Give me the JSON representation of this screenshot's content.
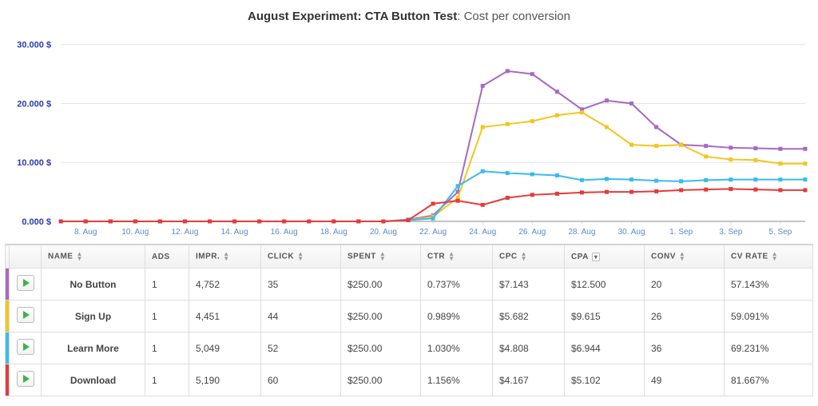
{
  "chart": {
    "title_bold": "August Experiment: CTA Button Test",
    "title_light": ": Cost per conversion",
    "title_fontsize": 15,
    "type": "line",
    "ylabel_suffix": " $",
    "ylim": [
      0,
      32
    ],
    "yticks": [
      0,
      10,
      20,
      30
    ],
    "ytick_labels": [
      "0.000 $",
      "10.000 $",
      "20.000 $",
      "30.000 $"
    ],
    "x_labels": [
      "8. Aug",
      "10. Aug",
      "12. Aug",
      "14. Aug",
      "16. Aug",
      "18. Aug",
      "20. Aug",
      "22. Aug",
      "24. Aug",
      "26. Aug",
      "28. Aug",
      "30. Aug",
      "1. Sep",
      "3. Sep",
      "5. Sep"
    ],
    "x_count": 31,
    "background_color": "#ffffff",
    "grid_color": "#e3e3e3",
    "axis_color": "#888888",
    "ytick_color": "#2a3ab0",
    "xtick_color": "#5a8acb",
    "line_width": 2,
    "marker": "square",
    "marker_size": 3,
    "series": [
      {
        "name": "No Button",
        "color": "#a769c3",
        "y": [
          0,
          0,
          0,
          0,
          0,
          0,
          0,
          0,
          0,
          0,
          0,
          0,
          0,
          0,
          0.3,
          1,
          5,
          23,
          25.5,
          25,
          22,
          19,
          20.5,
          20,
          16,
          13,
          12.8,
          12.5,
          12.4,
          12.3,
          12.3
        ]
      },
      {
        "name": "Sign Up",
        "color": "#f2c61f",
        "y": [
          0,
          0,
          0,
          0,
          0,
          0,
          0,
          0,
          0,
          0,
          0,
          0,
          0,
          0,
          0.2,
          0.8,
          4,
          16,
          16.5,
          17,
          18,
          18.5,
          16,
          13,
          12.8,
          13,
          11,
          10.5,
          10.4,
          9.8,
          9.8
        ]
      },
      {
        "name": "Learn More",
        "color": "#39bbed",
        "y": [
          0,
          0,
          0,
          0,
          0,
          0,
          0,
          0,
          0,
          0,
          0,
          0,
          0,
          0,
          0.2,
          0.5,
          6,
          8.5,
          8.2,
          8,
          7.8,
          7,
          7.2,
          7.1,
          6.9,
          6.8,
          7.0,
          7.1,
          7.1,
          7.1,
          7.1
        ]
      },
      {
        "name": "Download",
        "color": "#e43b3b",
        "y": [
          0,
          0,
          0,
          0,
          0,
          0,
          0,
          0,
          0,
          0,
          0,
          0,
          0,
          0,
          0.2,
          3,
          3.5,
          2.8,
          4,
          4.5,
          4.7,
          4.9,
          5,
          5,
          5.1,
          5.3,
          5.4,
          5.5,
          5.4,
          5.3,
          5.3
        ]
      }
    ]
  },
  "table": {
    "columns": {
      "name": "NAME",
      "ads": "ADS",
      "impr": "IMPR.",
      "click": "CLICK",
      "spent": "SPENT",
      "ctr": "CTR",
      "cpc": "CPC",
      "cpa": "CPA",
      "conv": "CONV",
      "cvr": "CV RATE"
    },
    "rows": [
      {
        "stripe": "#a769c3",
        "name": "No Button",
        "ads": "1",
        "impr": "4,752",
        "click": "35",
        "spent": "$250.00",
        "ctr": "0.737%",
        "cpc": "$7.143",
        "cpa": "$12.500",
        "conv": "20",
        "cvr": "57.143%"
      },
      {
        "stripe": "#f2c61f",
        "name": "Sign Up",
        "ads": "1",
        "impr": "4,451",
        "click": "44",
        "spent": "$250.00",
        "ctr": "0.989%",
        "cpc": "$5.682",
        "cpa": "$9.615",
        "conv": "26",
        "cvr": "59.091%"
      },
      {
        "stripe": "#39bbed",
        "name": "Learn More",
        "ads": "1",
        "impr": "5,049",
        "click": "52",
        "spent": "$250.00",
        "ctr": "1.030%",
        "cpc": "$4.808",
        "cpa": "$6.944",
        "conv": "36",
        "cvr": "69.231%"
      },
      {
        "stripe": "#e43b3b",
        "name": "Download",
        "ads": "1",
        "impr": "5,190",
        "click": "60",
        "spent": "$250.00",
        "ctr": "1.156%",
        "cpc": "$4.167",
        "cpa": "$5.102",
        "conv": "49",
        "cvr": "81.667%"
      }
    ]
  }
}
